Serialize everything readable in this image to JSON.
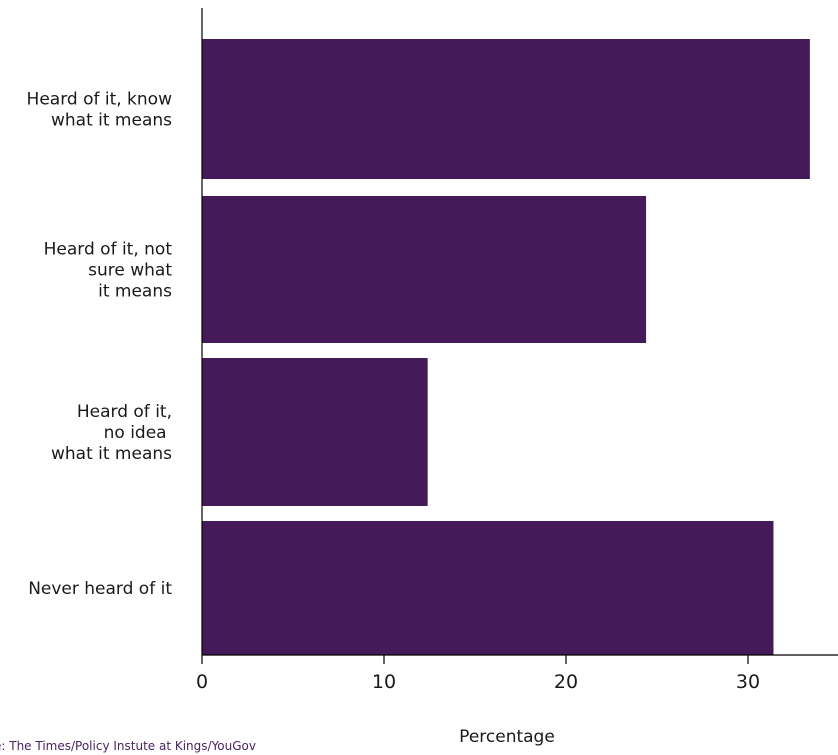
{
  "chart_data": {
    "type": "bar",
    "orientation": "horizontal",
    "categories": [
      [
        "Heard of it, know",
        "what it means"
      ],
      [
        "Heard of it, not",
        "sure what",
        "it means"
      ],
      [
        "Heard of it,",
        "no idea ",
        "what it means"
      ],
      [
        "Never heard of it"
      ]
    ],
    "values": [
      33.4,
      24.4,
      12.4,
      31.4
    ],
    "xlabel": "Percentage",
    "ylabel": "",
    "title": "",
    "xlim": [
      0,
      34
    ],
    "xticks": [
      0,
      10,
      20,
      30
    ],
    "grid": false,
    "legend": "none",
    "bar_color": "#441b58"
  },
  "source": "e: The Times/Policy Instute at Kings/YouGov"
}
